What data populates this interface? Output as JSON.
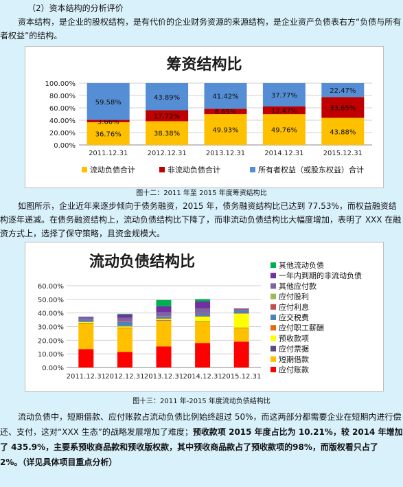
{
  "doc": {
    "section_heading": "（2）资本结构的分析评价",
    "para1": "资本结构，是企业的股权结构，是有代价的企业财务资源的来源结构，是企业资产负债表右方“负债与所有者权益”的结构。",
    "caption1": "图十二：2011 年至 2015 年度筹资结构比",
    "para2": "如图所示，企业近年来逐步倾向于债务融资，2015 年，债务融资结构比已达到 77.53%，而权益融资结构逐年递减。在债务融资结构上，流动负债结构比下降了，而非流动负债结构比大幅度增加，表明了 XXX 在融资方式上，选择了保守策略，且资金规模大。",
    "caption2": "图十三：2011 年-2015 年度流动负债结构比",
    "para3_normal": "流动负债中，短期借款、应付账款占流动负债比例始终超过 50%，而这两部分都需要企业在短期内进行偿还、支付，这对“XXX 生态”的战略发展增加了难度；",
    "para3_bold": "预收款项 2015 年度占比为 10.21%，较 2014 年增加了 435.9%，主要系预收商品款和预收版权款，其中预收商品款占了预收款项的98%，而版权看只占了 2%。（详见具体项目重点分析）"
  },
  "chart_data": [
    {
      "type": "bar",
      "stacked": true,
      "title": "筹资结构比",
      "categories": [
        "2011.12.31",
        "2012.12.31",
        "2013.12.31",
        "2014.12.31",
        "2015.12.31"
      ],
      "ylim": [
        0,
        100
      ],
      "yticks": [
        "0.00%",
        "20.00%",
        "40.00%",
        "60.00%",
        "80.00%",
        "100.00%"
      ],
      "grid": true,
      "legend_position": "bottom",
      "series": [
        {
          "name": "流动负债合计",
          "color": "#ffc000",
          "values": [
            36.76,
            38.38,
            49.93,
            49.76,
            43.88
          ],
          "labels": [
            "36.76%",
            "38.38%",
            "49.93%",
            "49.76%",
            "43.88%"
          ]
        },
        {
          "name": "非流动负债合计",
          "color": "#c00000",
          "values": [
            3.66,
            17.72,
            8.65,
            12.47,
            33.65
          ],
          "labels": [
            "3.66%",
            "17.72%",
            "8.65%",
            "12.47%",
            "33.65%"
          ]
        },
        {
          "name": "所有者权益（或股东权益）合计",
          "color": "#558ed5",
          "values": [
            59.58,
            43.89,
            41.42,
            37.77,
            22.47
          ],
          "labels": [
            "59.58%",
            "43.89%",
            "41.42%",
            "37.77%",
            "22.47%"
          ]
        }
      ]
    },
    {
      "type": "bar",
      "stacked": true,
      "title": "流动负债结构比",
      "categories": [
        "2011.12.31",
        "2012.12.31",
        "2013.12.31",
        "2014.12.31",
        "2015.12.31"
      ],
      "ylim": [
        0,
        60
      ],
      "yticks": [
        "0.00%",
        "10.00%",
        "20.00%",
        "30.00%",
        "40.00%",
        "50.00%",
        "60.00%"
      ],
      "grid": true,
      "legend_position": "right",
      "series": [
        {
          "name": "应付账款",
          "color": "#ff0000",
          "values": [
            13.5,
            11.5,
            15.5,
            18.0,
            19.0
          ]
        },
        {
          "name": "短期借款",
          "color": "#ffc000",
          "values": [
            19.0,
            17.5,
            19.0,
            15.5,
            10.0
          ]
        },
        {
          "name": "应付票据",
          "color": "#604a7b",
          "values": [
            0.3,
            0.3,
            0.3,
            0.3,
            0.3
          ]
        },
        {
          "name": "预收款项",
          "color": "#ffff00",
          "values": [
            0.5,
            0.8,
            0.8,
            3.5,
            10.2
          ]
        },
        {
          "name": "应付职工薪酬",
          "color": "#e46c0a",
          "values": [
            0.3,
            0.3,
            0.3,
            0.3,
            0.3
          ]
        },
        {
          "name": "应交税费",
          "color": "#4f81bd",
          "values": [
            2.0,
            3.0,
            1.5,
            2.0,
            2.5
          ]
        },
        {
          "name": "应付利息",
          "color": "#c0504d",
          "values": [
            0.2,
            0.5,
            0.3,
            0.3,
            0.3
          ]
        },
        {
          "name": "应付股利",
          "color": "#9bbb59",
          "values": [
            0,
            0,
            0,
            0,
            0
          ]
        },
        {
          "name": "其他应付款",
          "color": "#8064a2",
          "values": [
            1.0,
            2.5,
            2.8,
            3.5,
            0.8
          ]
        },
        {
          "name": "一年内到期的非流动负债",
          "color": "#7030a0",
          "values": [
            0.5,
            2.5,
            4.5,
            5.0,
            0
          ]
        },
        {
          "name": "其他流动负债",
          "color": "#00b050",
          "values": [
            0,
            0.5,
            4.5,
            1.8,
            0
          ]
        }
      ]
    }
  ]
}
